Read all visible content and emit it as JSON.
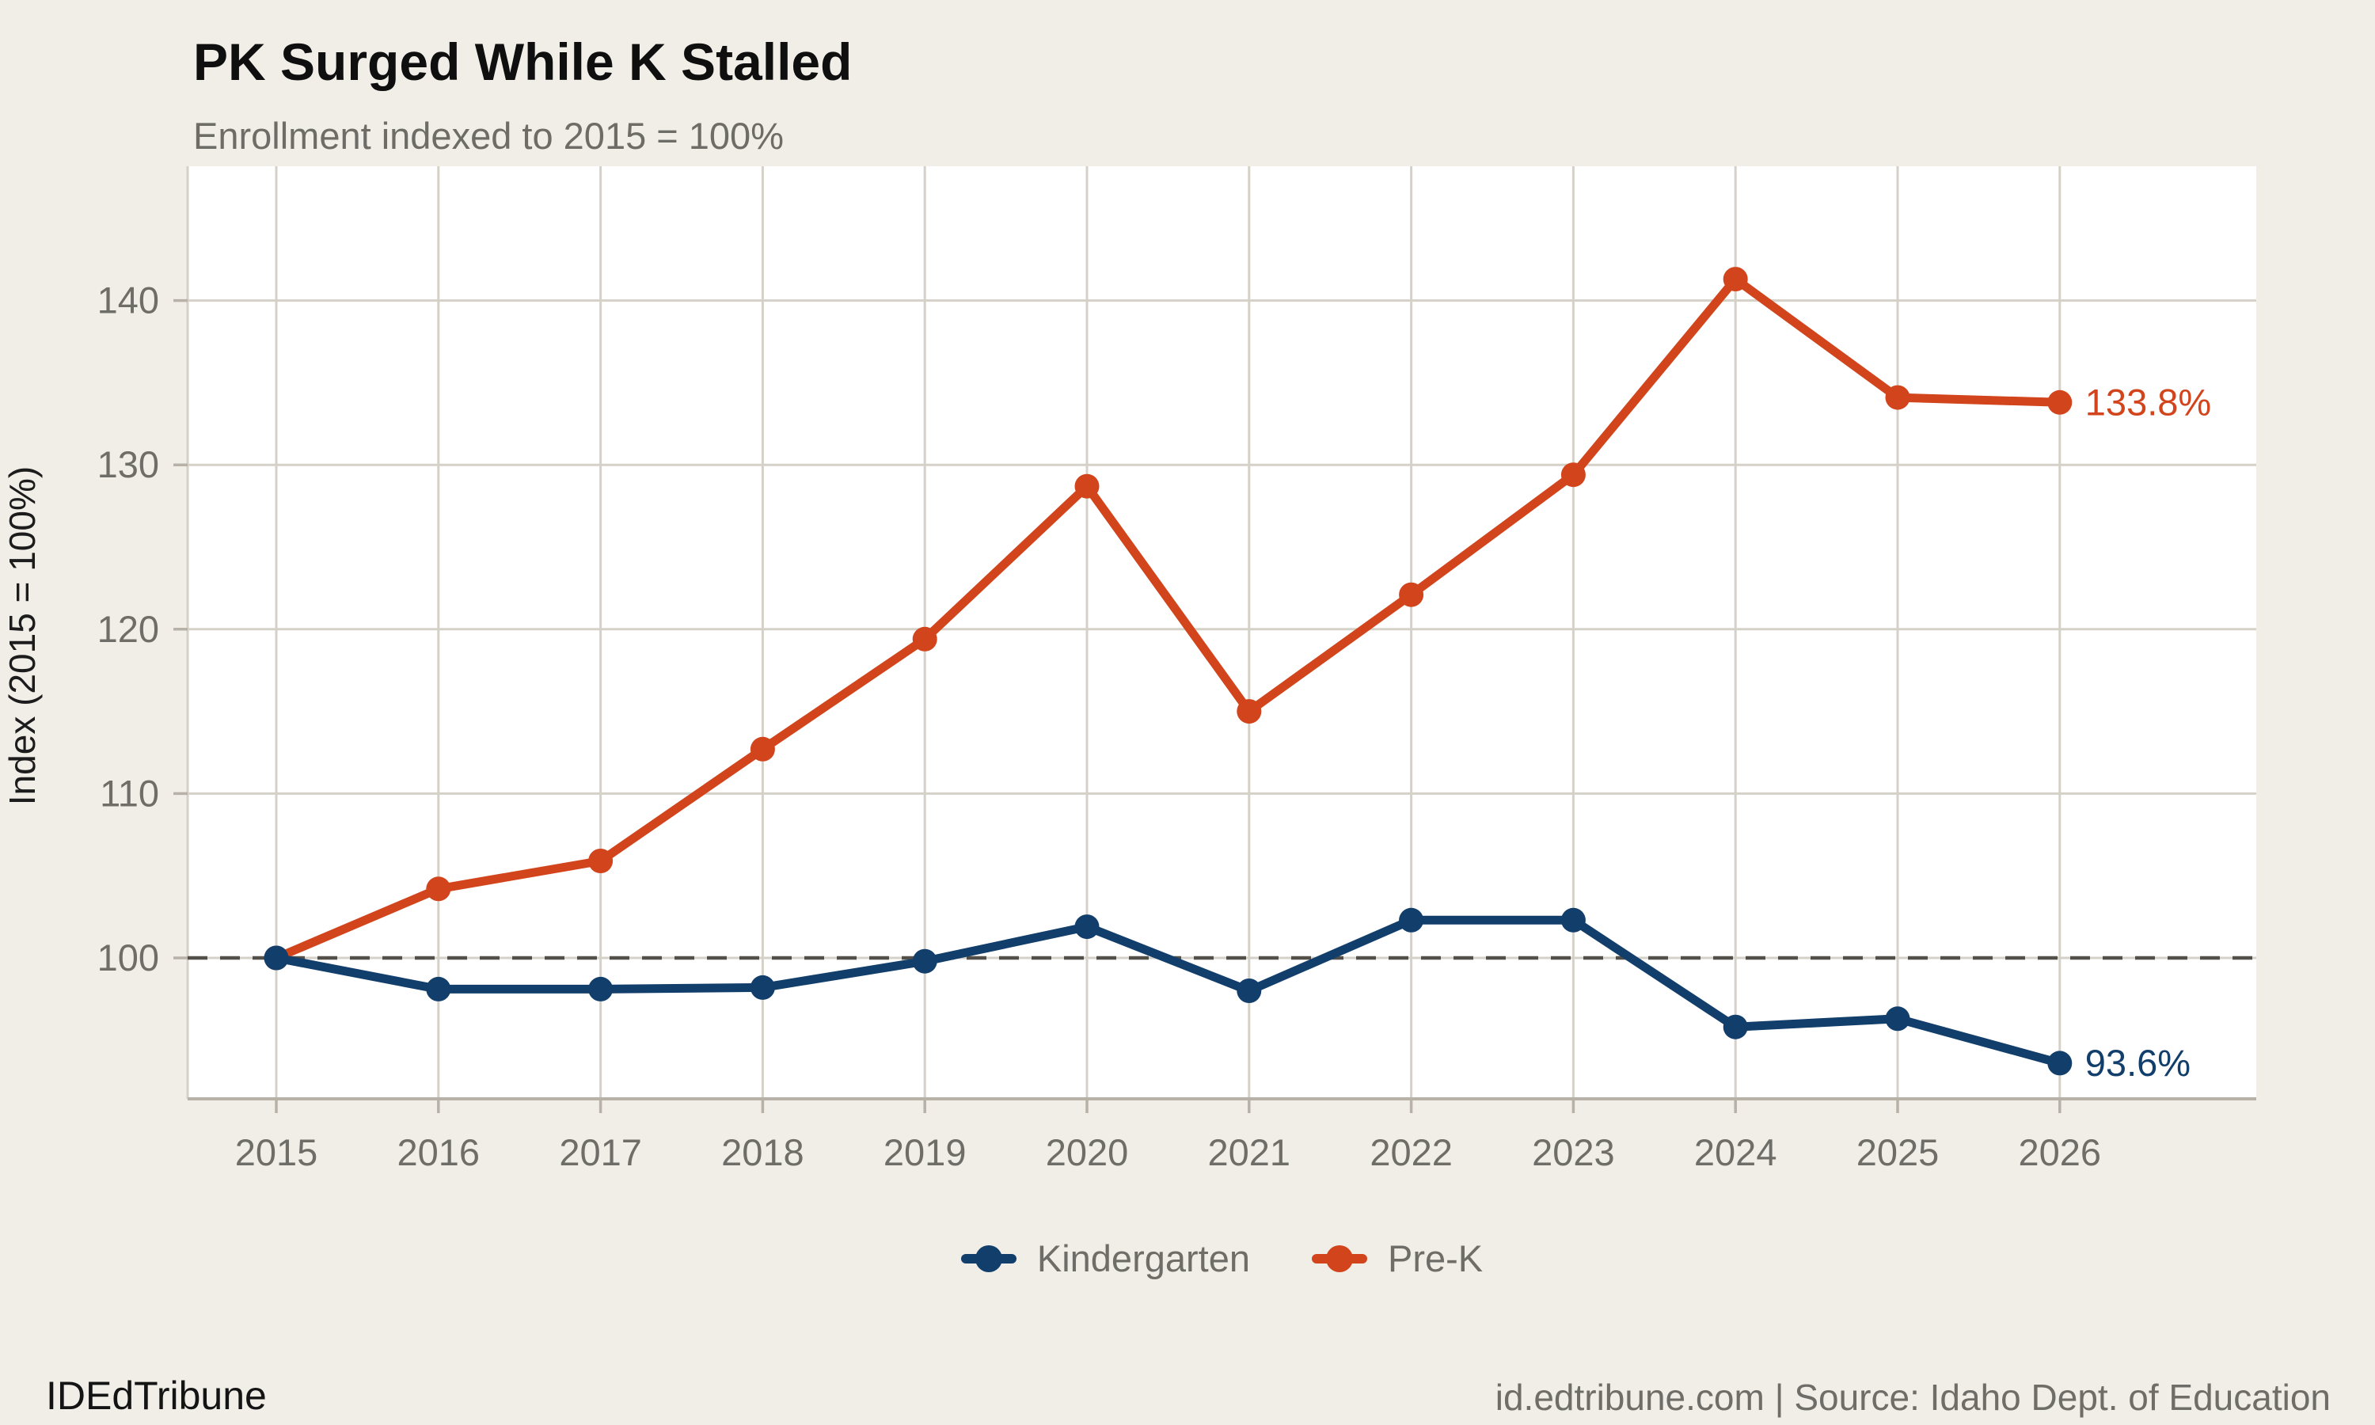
{
  "title": "PK Surged While K Stalled",
  "subtitle": "Enrollment indexed to 2015 = 100%",
  "footer": {
    "brand": "IDEdTribune",
    "credit": "id.edtribune.com | Source: Idaho Dept. of Education"
  },
  "colors": {
    "background": "#F1EEE8",
    "panel": "#FFFFFF",
    "grid": "#D5D1C8",
    "axis": "#B7B1A7",
    "baseline": "#53504A",
    "tick_label": "#6F6D68",
    "kindergarten": "#123E6B",
    "prek": "#D2441B"
  },
  "chart_data": {
    "type": "line",
    "x": [
      2015,
      2016,
      2017,
      2018,
      2019,
      2020,
      2021,
      2022,
      2023,
      2024,
      2025,
      2026
    ],
    "series": [
      {
        "name": "Kindergarten",
        "color": "#123E6B",
        "values": [
          100,
          98.1,
          98.1,
          98.2,
          99.8,
          101.9,
          98.0,
          102.3,
          102.3,
          95.8,
          96.3,
          93.6
        ],
        "end_label": "93.6%"
      },
      {
        "name": "Pre-K",
        "color": "#D2441B",
        "values": [
          100,
          104.2,
          105.9,
          112.7,
          119.4,
          128.7,
          115.0,
          122.1,
          129.4,
          141.3,
          134.1,
          133.8
        ],
        "end_label": "133.8%"
      }
    ],
    "title": "PK Surged While K Stalled",
    "subtitle": "Enrollment indexed to 2015 = 100%",
    "xlabel": "",
    "ylabel": "Index (2015 = 100%)",
    "yticks": [
      100,
      110,
      120,
      130,
      140
    ],
    "ylim": [
      90.8,
      148.2
    ],
    "baseline": 100,
    "grid": true,
    "legend_position": "bottom"
  }
}
